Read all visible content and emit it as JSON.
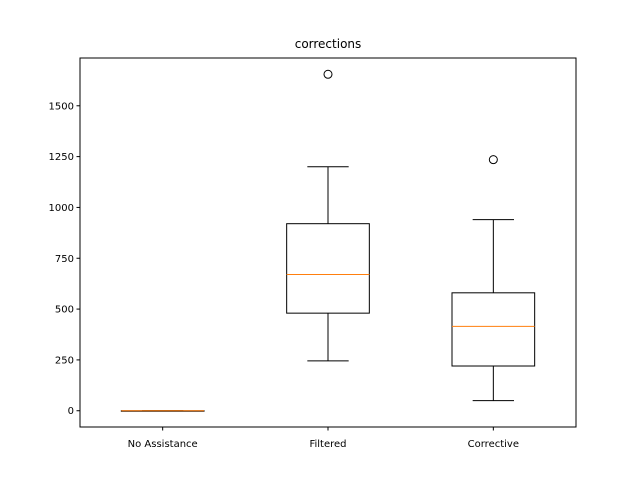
{
  "chart_data": {
    "type": "box",
    "title": "corrections",
    "xlabel": "",
    "ylabel": "",
    "categories": [
      "No Assistance",
      "Filtered",
      "Corrective"
    ],
    "ylim": [
      -80,
      1735
    ],
    "yticks": [
      0,
      250,
      500,
      750,
      1000,
      1250,
      1500
    ],
    "ytick_labels": [
      "0",
      "250",
      "500",
      "750",
      "1000",
      "1250",
      "1500"
    ],
    "grid": false,
    "boxes": [
      {
        "category": "No Assistance",
        "whislo": 0,
        "q1": 0,
        "med": 0,
        "q3": 0,
        "whishi": 0,
        "fliers": []
      },
      {
        "category": "Filtered",
        "whislo": 245,
        "q1": 480,
        "med": 670,
        "q3": 920,
        "whishi": 1200,
        "fliers": [
          1655
        ]
      },
      {
        "category": "Corrective",
        "whislo": 50,
        "q1": 220,
        "med": 415,
        "q3": 580,
        "whishi": 940,
        "fliers": [
          1235
        ]
      }
    ],
    "colors": {
      "box": "#000000",
      "median": "#ff7f0e",
      "background": "#ffffff"
    }
  }
}
